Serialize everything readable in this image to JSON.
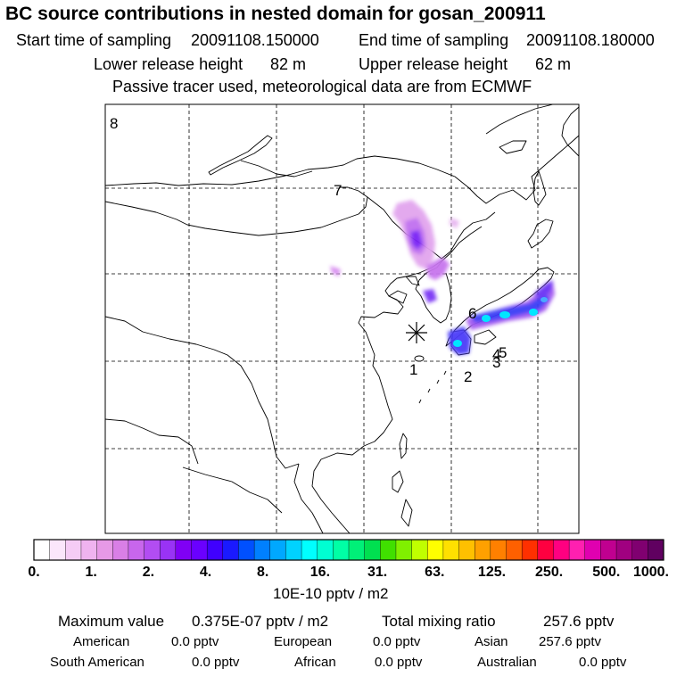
{
  "header": {
    "title": "BC  source contributions in nested domain for gosan_200911",
    "start_label": "Start time of sampling",
    "start_value": "20091108.150000",
    "end_label": "End time of sampling",
    "end_value": "20091108.180000",
    "lower_label": "Lower release height",
    "lower_value": "82 m",
    "upper_label": "Upper release height",
    "upper_value": "62 m",
    "note": "Passive tracer used, meteorological data are from ECMWF"
  },
  "map": {
    "markers": [
      "1",
      "2",
      "3",
      "4",
      "5",
      "6",
      "7",
      "8"
    ],
    "receptor": "gosan"
  },
  "legend": {
    "tick_labels": [
      "0.",
      "1.",
      "2.",
      "4.",
      "8.",
      "16.",
      "31.",
      "63.",
      "125.",
      "250.",
      "500.",
      "1000."
    ],
    "colors": [
      "#ffffff",
      "#fbe6fb",
      "#f5ccf5",
      "#efb3ef",
      "#e699e6",
      "#d97fe6",
      "#c866ec",
      "#b24df2",
      "#9933f5",
      "#8000f5",
      "#6a00ff",
      "#4000ff",
      "#1a1aff",
      "#0050ff",
      "#0080ff",
      "#00a8ff",
      "#00d2ff",
      "#00ffff",
      "#00ffd2",
      "#00ffa5",
      "#00f078",
      "#00e050",
      "#40e000",
      "#80f000",
      "#c0ff00",
      "#ffff00",
      "#ffe000",
      "#ffc000",
      "#ffa000",
      "#ff8000",
      "#ff6000",
      "#ff3000",
      "#ff0040",
      "#ff0080",
      "#ff20b0",
      "#e000b0",
      "#c00090",
      "#a00080",
      "#800070",
      "#600060"
    ],
    "unit": "10E-10 pptv / m2"
  },
  "footer": {
    "max_label": "Maximum value",
    "max_value": "0.375E-07 pptv / m2",
    "total_label": "Total mixing ratio",
    "total_value": "257.6 pptv",
    "american_label": "American",
    "american_value": "0.0 pptv",
    "european_label": "European",
    "european_value": "0.0 pptv",
    "asian_label": "Asian",
    "asian_value": "257.6 pptv",
    "southam_label": "South American",
    "southam_value": "0.0 pptv",
    "african_label": "African",
    "african_value": "0.0 pptv",
    "australian_label": "Australian",
    "australian_value": "0.0 pptv"
  }
}
